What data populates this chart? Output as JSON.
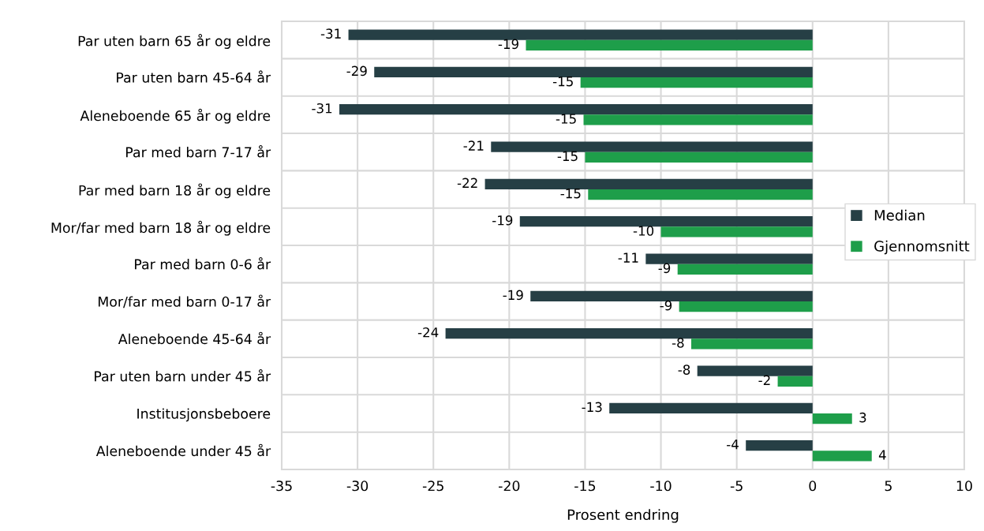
{
  "chart_data": {
    "type": "bar",
    "orientation": "horizontal",
    "xlabel": "Prosent endring",
    "categories": [
      "Par uten barn 65 år og eldre",
      "Par uten barn 45-64 år",
      "Aleneboende 65 år og eldre",
      "Par med barn 7-17 år",
      "Par med barn 18 år og eldre",
      "Mor/far med barn 18 år og eldre",
      "Par med barn 0-6 år",
      "Mor/far med barn 0-17 år",
      "Aleneboende 45-64 år",
      "Par uten barn under 45 år",
      "Institusjonsbeboere",
      "Aleneboende under 45 år"
    ],
    "series": [
      {
        "name": "Median",
        "color": "#263f45",
        "values": [
          -30.6,
          -28.9,
          -31.2,
          -21.2,
          -21.6,
          -19.3,
          -11.0,
          -18.6,
          -24.2,
          -7.6,
          -13.4,
          -4.4
        ],
        "value_labels": [
          "-31",
          "-29",
          "-31",
          "-21",
          "-22",
          "-19",
          "-11",
          "-19",
          "-24",
          "-8",
          "-13",
          "-4"
        ]
      },
      {
        "name": "Gjennomsnitt",
        "color": "#1e9e4a",
        "values": [
          -18.9,
          -15.3,
          -15.1,
          -15.0,
          -14.8,
          -10.0,
          -8.9,
          -8.8,
          -8.0,
          -2.3,
          2.6,
          3.9
        ],
        "value_labels": [
          "-19",
          "-15",
          "-15",
          "-15",
          "-15",
          "-10",
          "-9",
          "-9",
          "-8",
          "-2",
          "3",
          "4"
        ]
      }
    ],
    "xlim": [
      -35,
      10
    ],
    "xticks": [
      -35,
      -30,
      -25,
      -20,
      -15,
      -10,
      -5,
      0,
      5,
      10
    ],
    "grid": true,
    "legend": "right"
  }
}
